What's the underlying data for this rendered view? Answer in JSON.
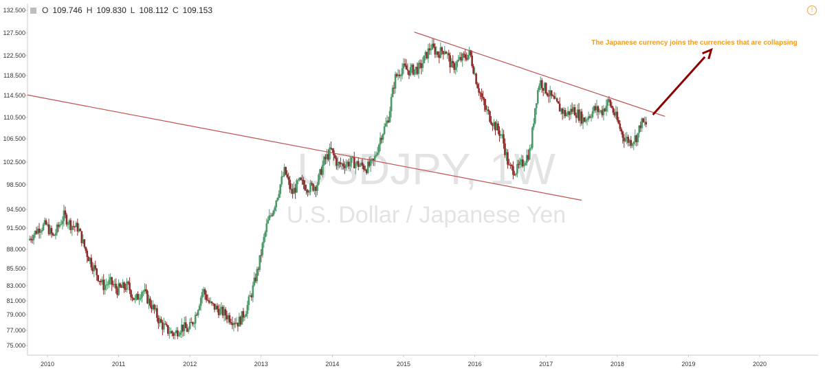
{
  "header": {
    "open_label": "O",
    "open": "109.746",
    "high_label": "H",
    "high": "109.830",
    "low_label": "L",
    "low": "108.112",
    "close_label": "C",
    "close": "109.153",
    "info_icon": "info-icon"
  },
  "chart_data": {
    "type": "candlestick",
    "watermark_symbol": "USDJPY, 1W",
    "watermark_name": "U.S. Dollar / Japanese Yen",
    "y_ticks": [
      "132.500",
      "127.500",
      "122.500",
      "118.500",
      "114.500",
      "110.500",
      "106.500",
      "102.500",
      "98.500",
      "94.500",
      "91.500",
      "88.000",
      "85.500",
      "83.000",
      "81.000",
      "79.000",
      "77.000",
      "75.000"
    ],
    "y_tick_values": [
      132.5,
      127.5,
      122.5,
      118.5,
      114.5,
      110.5,
      106.5,
      102.5,
      98.5,
      94.5,
      91.5,
      88.0,
      85.5,
      83.0,
      81.0,
      79.0,
      77.0,
      75.0
    ],
    "x_ticks": [
      "2010",
      "2011",
      "2012",
      "2013",
      "2014",
      "2015",
      "2016",
      "2017",
      "2018",
      "2019",
      "2020"
    ],
    "x_tick_values": [
      2010,
      2011,
      2012,
      2013,
      2014,
      2015,
      2016,
      2017,
      2018,
      2019,
      2020
    ],
    "xlim": [
      2009.72,
      2020.82
    ],
    "price_path": [
      [
        2009.75,
        89.5
      ],
      [
        2009.9,
        91.5
      ],
      [
        2010.0,
        92.0
      ],
      [
        2010.1,
        90.0
      ],
      [
        2010.25,
        93.5
      ],
      [
        2010.35,
        92.0
      ],
      [
        2010.45,
        91.5
      ],
      [
        2010.55,
        88.0
      ],
      [
        2010.7,
        85.0
      ],
      [
        2010.8,
        83.0
      ],
      [
        2010.9,
        83.5
      ],
      [
        2011.0,
        82.5
      ],
      [
        2011.15,
        83.0
      ],
      [
        2011.25,
        81.0
      ],
      [
        2011.35,
        82.5
      ],
      [
        2011.5,
        80.0
      ],
      [
        2011.6,
        78.0
      ],
      [
        2011.7,
        77.0
      ],
      [
        2011.8,
        76.5
      ],
      [
        2011.9,
        77.5
      ],
      [
        2012.0,
        77.0
      ],
      [
        2012.1,
        79.0
      ],
      [
        2012.2,
        82.5
      ],
      [
        2012.3,
        80.5
      ],
      [
        2012.45,
        79.5
      ],
      [
        2012.6,
        78.5
      ],
      [
        2012.7,
        78.0
      ],
      [
        2012.8,
        79.5
      ],
      [
        2012.9,
        82.5
      ],
      [
        2013.0,
        86.5
      ],
      [
        2013.1,
        92.0
      ],
      [
        2013.2,
        95.0
      ],
      [
        2013.35,
        101.0
      ],
      [
        2013.45,
        97.0
      ],
      [
        2013.55,
        99.0
      ],
      [
        2013.7,
        98.0
      ],
      [
        2013.8,
        98.5
      ],
      [
        2013.9,
        102.5
      ],
      [
        2014.0,
        104.5
      ],
      [
        2014.1,
        102.0
      ],
      [
        2014.3,
        102.5
      ],
      [
        2014.5,
        101.5
      ],
      [
        2014.6,
        102.5
      ],
      [
        2014.7,
        107.0
      ],
      [
        2014.8,
        110.0
      ],
      [
        2014.9,
        118.0
      ],
      [
        2015.0,
        120.0
      ],
      [
        2015.1,
        119.5
      ],
      [
        2015.25,
        120.0
      ],
      [
        2015.4,
        124.5
      ],
      [
        2015.5,
        123.0
      ],
      [
        2015.6,
        124.0
      ],
      [
        2015.7,
        120.0
      ],
      [
        2015.8,
        121.5
      ],
      [
        2015.95,
        123.0
      ],
      [
        2016.05,
        117.0
      ],
      [
        2016.15,
        112.5
      ],
      [
        2016.3,
        109.0
      ],
      [
        2016.4,
        107.0
      ],
      [
        2016.5,
        101.5
      ],
      [
        2016.6,
        101.0
      ],
      [
        2016.7,
        102.5
      ],
      [
        2016.8,
        104.5
      ],
      [
        2016.87,
        113.0
      ],
      [
        2016.93,
        117.5
      ],
      [
        2017.0,
        116.0
      ],
      [
        2017.15,
        113.0
      ],
      [
        2017.3,
        111.0
      ],
      [
        2017.4,
        112.0
      ],
      [
        2017.55,
        110.0
      ],
      [
        2017.7,
        112.0
      ],
      [
        2017.8,
        111.5
      ],
      [
        2017.9,
        113.5
      ],
      [
        2018.0,
        110.5
      ],
      [
        2018.1,
        107.0
      ],
      [
        2018.2,
        106.0
      ],
      [
        2018.3,
        107.0
      ],
      [
        2018.35,
        109.5
      ],
      [
        2018.42,
        109.2
      ]
    ],
    "trendlines": [
      {
        "from": [
          2009.72,
          114.6
        ],
        "to": [
          2017.5,
          96.0
        ]
      },
      {
        "from": [
          2015.15,
          127.7
        ],
        "to": [
          2018.67,
          110.7
        ]
      }
    ],
    "annotation": "The Japanese currency joins the currencies that are collapsing",
    "arrow": {
      "from": [
        2018.5,
        111.0
      ],
      "to": [
        2019.32,
        123.8
      ]
    },
    "colors": {
      "up": "#4a9a6a",
      "down": "#8b2a2a",
      "trendline": "#c0504d",
      "arrow": "#8b0000",
      "annotation": "#f29a1a",
      "watermark": "#e3e3e3"
    }
  }
}
